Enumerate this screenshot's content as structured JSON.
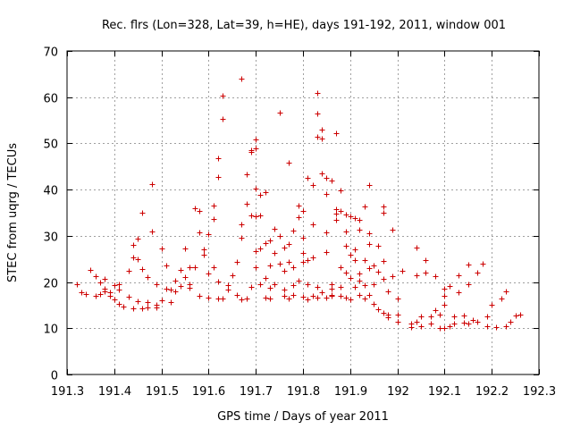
{
  "chart_data": {
    "type": "scatter",
    "title": "Rec. flrs (Lon=328, Lat=39, h=HE), days 191-192, 2011, window 001",
    "xlabel": "GPS time / Days of year 2011",
    "ylabel": "STEC from uqrg / TECUs",
    "xlim": [
      191.3,
      192.3
    ],
    "ylim": [
      0,
      70
    ],
    "xticks": [
      "191.3",
      "191.4",
      "191.5",
      "191.6",
      "191.7",
      "191.8",
      "191.9",
      "192",
      "192.1",
      "192.2",
      "192.3"
    ],
    "xtick_values": [
      191.3,
      191.4,
      191.5,
      191.6,
      191.7,
      191.8,
      191.9,
      192.0,
      192.1,
      192.2,
      192.3
    ],
    "yticks": [
      "0",
      "10",
      "20",
      "30",
      "40",
      "50",
      "60",
      "70"
    ],
    "ytick_values": [
      0,
      10,
      20,
      30,
      40,
      50,
      60,
      70
    ],
    "grid": true,
    "marker": "plus",
    "color": "#cc0000",
    "series": [
      {
        "name": "STEC",
        "points": [
          [
            191.32,
            19.5
          ],
          [
            191.33,
            17.8
          ],
          [
            191.34,
            17.5
          ],
          [
            191.35,
            22.6
          ],
          [
            191.36,
            17.0
          ],
          [
            191.36,
            21.2
          ],
          [
            191.37,
            20.0
          ],
          [
            191.37,
            17.4
          ],
          [
            191.38,
            18.0
          ],
          [
            191.38,
            18.6
          ],
          [
            191.38,
            20.6
          ],
          [
            191.39,
            17.0
          ],
          [
            191.39,
            17.8
          ],
          [
            191.4,
            19.3
          ],
          [
            191.4,
            16.3
          ],
          [
            191.41,
            18.4
          ],
          [
            191.41,
            15.2
          ],
          [
            191.41,
            19.5
          ],
          [
            191.42,
            14.6
          ],
          [
            191.43,
            22.4
          ],
          [
            191.43,
            16.9
          ],
          [
            191.44,
            14.4
          ],
          [
            191.44,
            25.4
          ],
          [
            191.44,
            28.0
          ],
          [
            191.45,
            15.8
          ],
          [
            191.45,
            29.3
          ],
          [
            191.45,
            25.0
          ],
          [
            191.46,
            14.3
          ],
          [
            191.46,
            22.8
          ],
          [
            191.46,
            35.0
          ],
          [
            191.47,
            15.6
          ],
          [
            191.47,
            14.5
          ],
          [
            191.47,
            21.0
          ],
          [
            191.48,
            31.0
          ],
          [
            191.48,
            41.2
          ],
          [
            191.49,
            15.0
          ],
          [
            191.49,
            19.5
          ],
          [
            191.49,
            14.5
          ],
          [
            191.5,
            27.3
          ],
          [
            191.5,
            16.0
          ],
          [
            191.51,
            18.6
          ],
          [
            191.51,
            23.6
          ],
          [
            191.52,
            15.6
          ],
          [
            191.52,
            18.3
          ],
          [
            191.53,
            20.3
          ],
          [
            191.53,
            18.0
          ],
          [
            191.54,
            19.2
          ],
          [
            191.54,
            22.6
          ],
          [
            191.55,
            21.0
          ],
          [
            191.55,
            27.3
          ],
          [
            191.56,
            18.8
          ],
          [
            191.56,
            19.6
          ],
          [
            191.56,
            23.2
          ],
          [
            191.57,
            36.0
          ],
          [
            191.57,
            23.3
          ],
          [
            191.58,
            17.0
          ],
          [
            191.58,
            30.8
          ],
          [
            191.58,
            35.4
          ],
          [
            191.59,
            26.0
          ],
          [
            191.59,
            27.0
          ],
          [
            191.6,
            21.8
          ],
          [
            191.6,
            16.6
          ],
          [
            191.6,
            30.4
          ],
          [
            191.61,
            23.3
          ],
          [
            191.61,
            33.6
          ],
          [
            191.61,
            36.6
          ],
          [
            191.62,
            16.4
          ],
          [
            191.62,
            20.2
          ],
          [
            191.62,
            42.8
          ],
          [
            191.62,
            46.8
          ],
          [
            191.63,
            55.3
          ],
          [
            191.63,
            60.3
          ],
          [
            191.63,
            16.5
          ],
          [
            191.64,
            18.3
          ],
          [
            191.64,
            19.4
          ],
          [
            191.65,
            21.4
          ],
          [
            191.66,
            17.2
          ],
          [
            191.66,
            24.3
          ],
          [
            191.67,
            16.2
          ],
          [
            191.67,
            32.4
          ],
          [
            191.67,
            29.5
          ],
          [
            191.67,
            64.0
          ],
          [
            191.68,
            16.5
          ],
          [
            191.68,
            37.0
          ],
          [
            191.68,
            43.3
          ],
          [
            191.69,
            34.4
          ],
          [
            191.69,
            48.5
          ],
          [
            191.69,
            48.2
          ],
          [
            191.69,
            18.9
          ],
          [
            191.7,
            23.3
          ],
          [
            191.7,
            26.6
          ],
          [
            191.7,
            34.2
          ],
          [
            191.7,
            40.3
          ],
          [
            191.7,
            50.8
          ],
          [
            191.7,
            49.0
          ],
          [
            191.71,
            19.6
          ],
          [
            191.71,
            34.5
          ],
          [
            191.71,
            38.8
          ],
          [
            191.71,
            27.3
          ],
          [
            191.72,
            16.7
          ],
          [
            191.72,
            20.8
          ],
          [
            191.72,
            28.5
          ],
          [
            191.72,
            39.4
          ],
          [
            191.73,
            16.5
          ],
          [
            191.73,
            18.7
          ],
          [
            191.73,
            23.5
          ],
          [
            191.73,
            29.0
          ],
          [
            191.74,
            26.3
          ],
          [
            191.74,
            31.5
          ],
          [
            191.74,
            19.6
          ],
          [
            191.75,
            24.0
          ],
          [
            191.75,
            30.0
          ],
          [
            191.75,
            56.6
          ],
          [
            191.76,
            22.4
          ],
          [
            191.76,
            18.3
          ],
          [
            191.76,
            17.0
          ],
          [
            191.76,
            27.5
          ],
          [
            191.77,
            24.3
          ],
          [
            191.77,
            16.5
          ],
          [
            191.77,
            28.2
          ],
          [
            191.77,
            45.8
          ],
          [
            191.78,
            19.3
          ],
          [
            191.78,
            23.3
          ],
          [
            191.78,
            17.3
          ],
          [
            191.78,
            31.2
          ],
          [
            191.79,
            36.5
          ],
          [
            191.79,
            34.0
          ],
          [
            191.79,
            20.3
          ],
          [
            191.8,
            24.3
          ],
          [
            191.8,
            26.3
          ],
          [
            191.8,
            29.5
          ],
          [
            191.8,
            35.3
          ],
          [
            191.8,
            16.8
          ],
          [
            191.81,
            19.5
          ],
          [
            191.81,
            16.3
          ],
          [
            191.81,
            24.8
          ],
          [
            191.81,
            42.5
          ],
          [
            191.82,
            41.0
          ],
          [
            191.82,
            32.5
          ],
          [
            191.82,
            25.3
          ],
          [
            191.82,
            17.0
          ],
          [
            191.83,
            16.6
          ],
          [
            191.83,
            19.0
          ],
          [
            191.83,
            51.5
          ],
          [
            191.83,
            56.5
          ],
          [
            191.83,
            61.0
          ],
          [
            191.84,
            51.0
          ],
          [
            191.84,
            52.9
          ],
          [
            191.84,
            43.6
          ],
          [
            191.84,
            17.8
          ],
          [
            191.85,
            16.7
          ],
          [
            191.85,
            26.5
          ],
          [
            191.85,
            30.7
          ],
          [
            191.85,
            39.0
          ],
          [
            191.85,
            42.5
          ],
          [
            191.86,
            42.0
          ],
          [
            191.86,
            17.0
          ],
          [
            191.86,
            17.3
          ],
          [
            191.86,
            18.5
          ],
          [
            191.86,
            19.5
          ],
          [
            191.87,
            33.5
          ],
          [
            191.87,
            34.8
          ],
          [
            191.87,
            35.8
          ],
          [
            191.87,
            52.3
          ],
          [
            191.88,
            17.0
          ],
          [
            191.88,
            19.0
          ],
          [
            191.88,
            23.3
          ],
          [
            191.88,
            35.3
          ],
          [
            191.88,
            39.8
          ],
          [
            191.89,
            27.8
          ],
          [
            191.89,
            16.7
          ],
          [
            191.89,
            22.0
          ],
          [
            191.89,
            31.0
          ],
          [
            191.89,
            34.6
          ],
          [
            191.9,
            20.8
          ],
          [
            191.9,
            26.0
          ],
          [
            191.9,
            16.3
          ],
          [
            191.9,
            34.2
          ],
          [
            191.91,
            19.0
          ],
          [
            191.91,
            24.8
          ],
          [
            191.91,
            27.0
          ],
          [
            191.91,
            33.8
          ],
          [
            191.92,
            17.3
          ],
          [
            191.92,
            20.3
          ],
          [
            191.92,
            21.8
          ],
          [
            191.92,
            31.4
          ],
          [
            191.92,
            33.5
          ],
          [
            191.93,
            36.4
          ],
          [
            191.93,
            16.5
          ],
          [
            191.93,
            19.3
          ],
          [
            191.93,
            24.7
          ],
          [
            191.94,
            17.3
          ],
          [
            191.94,
            23.0
          ],
          [
            191.94,
            28.2
          ],
          [
            191.94,
            30.6
          ],
          [
            191.94,
            41.0
          ],
          [
            191.95,
            15.3
          ],
          [
            191.95,
            19.6
          ],
          [
            191.95,
            23.6
          ],
          [
            191.96,
            22.3
          ],
          [
            191.96,
            27.8
          ],
          [
            191.96,
            14.2
          ],
          [
            191.97,
            13.3
          ],
          [
            191.97,
            20.6
          ],
          [
            191.97,
            24.6
          ],
          [
            191.97,
            35.0
          ],
          [
            191.97,
            36.3
          ],
          [
            191.98,
            13.0
          ],
          [
            191.98,
            12.3
          ],
          [
            191.98,
            18.0
          ],
          [
            191.99,
            21.2
          ],
          [
            191.99,
            31.4
          ],
          [
            192.0,
            13.0
          ],
          [
            192.0,
            16.4
          ],
          [
            192.0,
            11.5
          ],
          [
            192.01,
            22.5
          ],
          [
            192.03,
            11.0
          ],
          [
            192.03,
            10.3
          ],
          [
            192.04,
            11.5
          ],
          [
            192.04,
            21.5
          ],
          [
            192.04,
            27.5
          ],
          [
            192.05,
            12.6
          ],
          [
            192.05,
            10.5
          ],
          [
            192.06,
            24.8
          ],
          [
            192.06,
            22.0
          ],
          [
            192.07,
            11.0
          ],
          [
            192.07,
            12.5
          ],
          [
            192.08,
            21.3
          ],
          [
            192.08,
            14.0
          ],
          [
            192.09,
            10.0
          ],
          [
            192.09,
            13.0
          ],
          [
            192.1,
            17.0
          ],
          [
            192.1,
            15.0
          ],
          [
            192.1,
            18.5
          ],
          [
            192.1,
            10.0
          ],
          [
            192.11,
            19.2
          ],
          [
            192.11,
            10.5
          ],
          [
            192.12,
            12.6
          ],
          [
            192.12,
            11.0
          ],
          [
            192.13,
            17.8
          ],
          [
            192.13,
            21.5
          ],
          [
            192.14,
            12.8
          ],
          [
            192.14,
            11.3
          ],
          [
            192.15,
            23.8
          ],
          [
            192.15,
            19.5
          ],
          [
            192.15,
            11.0
          ],
          [
            192.16,
            11.8
          ],
          [
            192.17,
            22.0
          ],
          [
            192.17,
            11.5
          ],
          [
            192.18,
            24.0
          ],
          [
            192.19,
            12.5
          ],
          [
            192.19,
            10.5
          ],
          [
            192.2,
            15.0
          ],
          [
            192.21,
            10.3
          ],
          [
            192.22,
            16.5
          ],
          [
            192.23,
            10.5
          ],
          [
            192.23,
            18.0
          ],
          [
            192.24,
            11.4
          ],
          [
            192.25,
            12.7
          ],
          [
            192.26,
            13.0
          ]
        ]
      }
    ]
  }
}
